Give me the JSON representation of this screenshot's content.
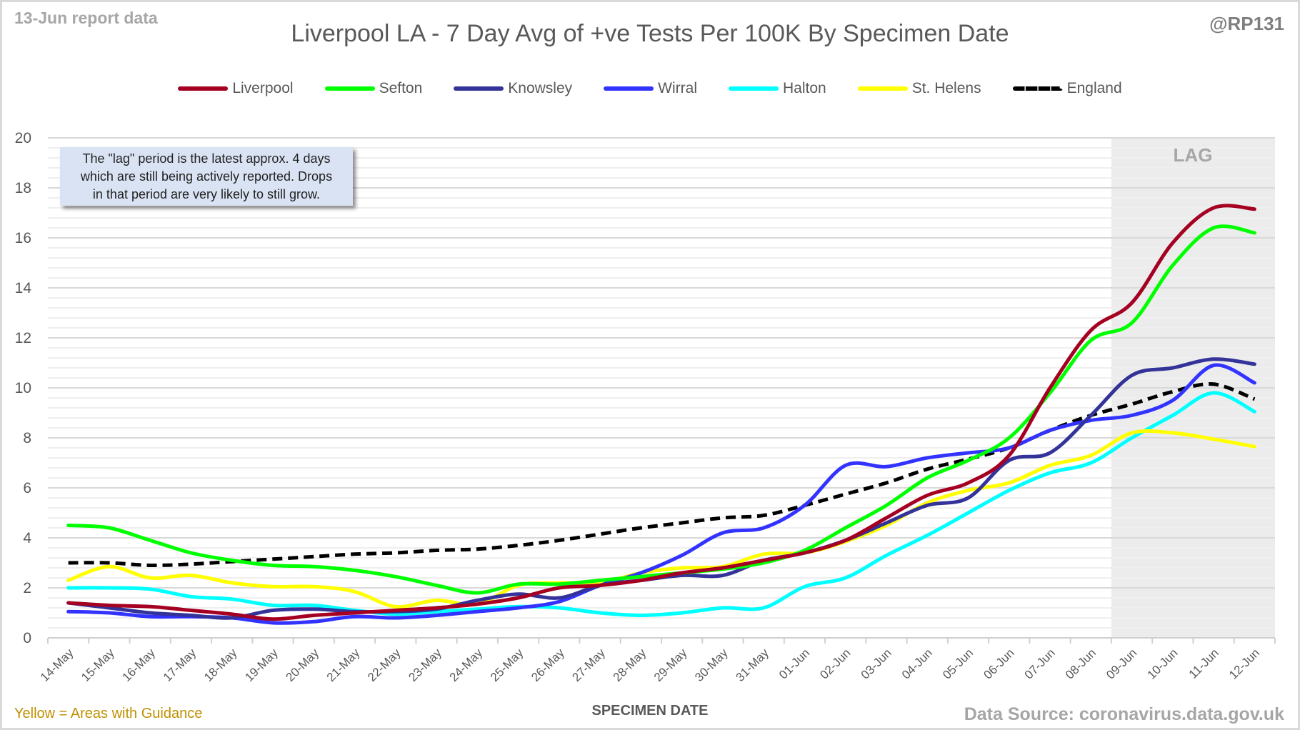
{
  "header": {
    "report_date": "13-Jun report data",
    "handle": "@RP131"
  },
  "footer": {
    "guidance_note": "Yellow = Areas with Guidance",
    "data_source": "Data Source: coronavirus.data.gov.uk"
  },
  "annotation": {
    "note_lines": [
      "The \"lag\" period is the latest approx. 4 days",
      "which are still being actively reported.  Drops",
      "in that period are very likely to still grow."
    ],
    "lag_label": "LAG",
    "lag_days": 4
  },
  "chart_data": {
    "type": "line",
    "title": "Liverpool LA - 7 Day Avg of +ve Tests Per 100K By Specimen Date",
    "xlabel": "SPECIMEN DATE",
    "ylabel": "",
    "ylim": [
      0,
      20
    ],
    "yticks": [
      0,
      2,
      4,
      6,
      8,
      10,
      12,
      14,
      16,
      18,
      20
    ],
    "grid": true,
    "legend_position": "top",
    "smoothed": true,
    "categories": [
      "14-May",
      "15-May",
      "16-May",
      "17-May",
      "18-May",
      "19-May",
      "20-May",
      "21-May",
      "22-May",
      "23-May",
      "24-May",
      "25-May",
      "26-May",
      "27-May",
      "28-May",
      "29-May",
      "30-May",
      "31-May",
      "01-Jun",
      "02-Jun",
      "03-Jun",
      "04-Jun",
      "05-Jun",
      "06-Jun",
      "07-Jun",
      "08-Jun",
      "09-Jun",
      "10-Jun",
      "11-Jun",
      "12-Jun"
    ],
    "lag_categories": [
      "09-Jun",
      "10-Jun",
      "11-Jun",
      "12-Jun"
    ],
    "series": [
      {
        "name": "Liverpool",
        "color": "#a50021",
        "dashed": false,
        "values": [
          1.4,
          1.3,
          1.25,
          1.1,
          0.95,
          0.75,
          0.9,
          1.0,
          1.1,
          1.2,
          1.35,
          1.6,
          2.0,
          2.1,
          2.3,
          2.6,
          2.8,
          3.1,
          3.4,
          3.9,
          4.8,
          5.7,
          6.2,
          7.3,
          10.0,
          12.3,
          13.4,
          15.8,
          17.2,
          17.15
        ]
      },
      {
        "name": "Sefton",
        "color": "#00ff00",
        "dashed": false,
        "values": [
          4.5,
          4.4,
          3.9,
          3.4,
          3.1,
          2.9,
          2.85,
          2.7,
          2.45,
          2.1,
          1.8,
          2.15,
          2.15,
          2.3,
          2.45,
          2.6,
          2.75,
          3.0,
          3.5,
          4.4,
          5.3,
          6.4,
          7.1,
          8.0,
          9.8,
          11.9,
          12.6,
          14.9,
          16.4,
          16.2
        ]
      },
      {
        "name": "Knowsley",
        "color": "#333399",
        "dashed": false,
        "values": [
          1.4,
          1.2,
          1.0,
          0.9,
          0.8,
          1.1,
          1.15,
          1.05,
          1.05,
          1.15,
          1.5,
          1.75,
          1.6,
          2.1,
          2.3,
          2.5,
          2.5,
          3.1,
          3.4,
          3.9,
          4.6,
          5.3,
          5.6,
          7.1,
          7.4,
          8.9,
          10.5,
          10.8,
          11.15,
          10.95
        ]
      },
      {
        "name": "Wirral",
        "color": "#3333ff",
        "dashed": false,
        "values": [
          1.05,
          1.0,
          0.85,
          0.85,
          0.8,
          0.6,
          0.65,
          0.85,
          0.8,
          0.9,
          1.05,
          1.2,
          1.45,
          2.1,
          2.6,
          3.3,
          4.2,
          4.4,
          5.3,
          6.9,
          6.85,
          7.2,
          7.4,
          7.6,
          8.3,
          8.7,
          8.9,
          9.5,
          10.9,
          10.2
        ]
      },
      {
        "name": "Halton",
        "color": "#00ffff",
        "dashed": false,
        "values": [
          2.0,
          2.0,
          1.95,
          1.65,
          1.55,
          1.3,
          1.3,
          1.1,
          0.95,
          1.05,
          1.15,
          1.25,
          1.2,
          1.0,
          0.9,
          1.0,
          1.2,
          1.2,
          2.05,
          2.4,
          3.3,
          4.1,
          5.0,
          5.9,
          6.6,
          7.0,
          8.0,
          8.9,
          9.8,
          9.05
        ]
      },
      {
        "name": "St. Helens",
        "color": "#ffff00",
        "dashed": false,
        "values": [
          2.3,
          2.85,
          2.4,
          2.5,
          2.2,
          2.05,
          2.05,
          1.85,
          1.25,
          1.5,
          1.35,
          2.1,
          2.2,
          2.2,
          2.6,
          2.8,
          2.85,
          3.35,
          3.4,
          3.85,
          4.5,
          5.4,
          5.9,
          6.2,
          6.9,
          7.3,
          8.2,
          8.2,
          7.95,
          7.65
        ]
      },
      {
        "name": "England",
        "color": "#000000",
        "dashed": true,
        "values": [
          3.0,
          3.0,
          2.9,
          2.95,
          3.05,
          3.15,
          3.25,
          3.35,
          3.4,
          3.5,
          3.55,
          3.7,
          3.9,
          4.15,
          4.4,
          4.6,
          4.8,
          4.9,
          5.3,
          5.75,
          6.2,
          6.75,
          7.15,
          7.6,
          8.3,
          8.9,
          9.35,
          9.85,
          10.15,
          9.55
        ]
      }
    ]
  }
}
